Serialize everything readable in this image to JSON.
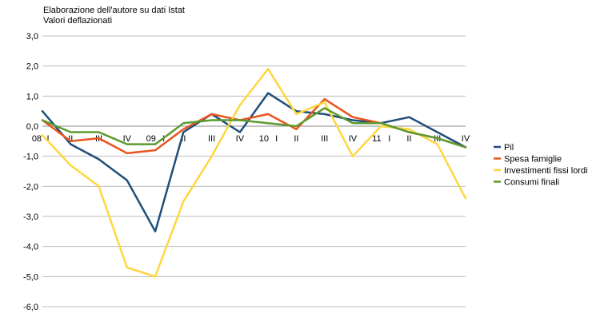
{
  "notes": [
    "Elaborazione dell'autore su dati Istat",
    "Valori deflazionati"
  ],
  "chart_data": {
    "type": "line",
    "title": "",
    "xlabel": "",
    "ylabel": "",
    "ylim": [
      -6,
      3
    ],
    "yticks": [
      3,
      2,
      1,
      0,
      -1,
      -2,
      -3,
      -4,
      -5,
      -6
    ],
    "ytick_labels": [
      "3,0",
      "2,0",
      "1,0",
      "0,0",
      "-1,0",
      "-2,0",
      "-3,0",
      "-4,0",
      "-5,0",
      "-6,0"
    ],
    "grid": true,
    "legend_position": "right",
    "x": [
      "08 I",
      "II",
      "III",
      "IV",
      "09 I",
      "II",
      "III",
      "IV",
      "10 I",
      "II",
      "III",
      "IV",
      "11 I",
      "II",
      "III",
      "IV"
    ],
    "tick_labels": [
      {
        "pos": -0.2,
        "text": "08"
      },
      {
        "pos": 0.2,
        "text": "I"
      },
      {
        "pos": 1,
        "text": "II"
      },
      {
        "pos": 2,
        "text": "III"
      },
      {
        "pos": 3,
        "text": "IV"
      },
      {
        "pos": 3.85,
        "text": "09"
      },
      {
        "pos": 4.3,
        "text": "I"
      },
      {
        "pos": 5,
        "text": "II"
      },
      {
        "pos": 6,
        "text": "III"
      },
      {
        "pos": 7,
        "text": "IV"
      },
      {
        "pos": 7.85,
        "text": "10"
      },
      {
        "pos": 8.3,
        "text": "I"
      },
      {
        "pos": 9,
        "text": "II"
      },
      {
        "pos": 10,
        "text": "III"
      },
      {
        "pos": 11,
        "text": "IV"
      },
      {
        "pos": 11.85,
        "text": "11"
      },
      {
        "pos": 12.3,
        "text": "I"
      },
      {
        "pos": 13,
        "text": "II"
      },
      {
        "pos": 14,
        "text": "III"
      },
      {
        "pos": 15,
        "text": "IV"
      }
    ],
    "series": [
      {
        "name": "Pil",
        "color": "#1f4e79",
        "values": [
          0.5,
          -0.6,
          -1.1,
          -1.8,
          -3.5,
          -0.2,
          0.4,
          -0.2,
          1.1,
          0.5,
          0.4,
          0.2,
          0.1,
          0.3,
          -0.2,
          -0.7
        ]
      },
      {
        "name": "Spesa famiglie",
        "color": "#e8541c",
        "values": [
          0.2,
          -0.5,
          -0.4,
          -0.9,
          -0.8,
          -0.1,
          0.4,
          0.2,
          0.4,
          -0.1,
          0.9,
          0.3,
          0.1,
          -0.2,
          -0.4,
          -0.7
        ]
      },
      {
        "name": "Investimenti fissi lordi",
        "color": "#ffd63f",
        "values": [
          -0.3,
          -1.3,
          -2.0,
          -4.7,
          -5.0,
          -2.5,
          -1.0,
          0.7,
          1.9,
          0.4,
          0.8,
          -1.0,
          0.0,
          -0.1,
          -0.6,
          -2.4
        ]
      },
      {
        "name": "Consumi finali",
        "color": "#5b9b2f",
        "values": [
          0.2,
          -0.2,
          -0.2,
          -0.6,
          -0.6,
          0.1,
          0.2,
          0.2,
          0.1,
          0.0,
          0.6,
          0.1,
          0.1,
          -0.2,
          -0.4,
          -0.7
        ]
      }
    ]
  }
}
